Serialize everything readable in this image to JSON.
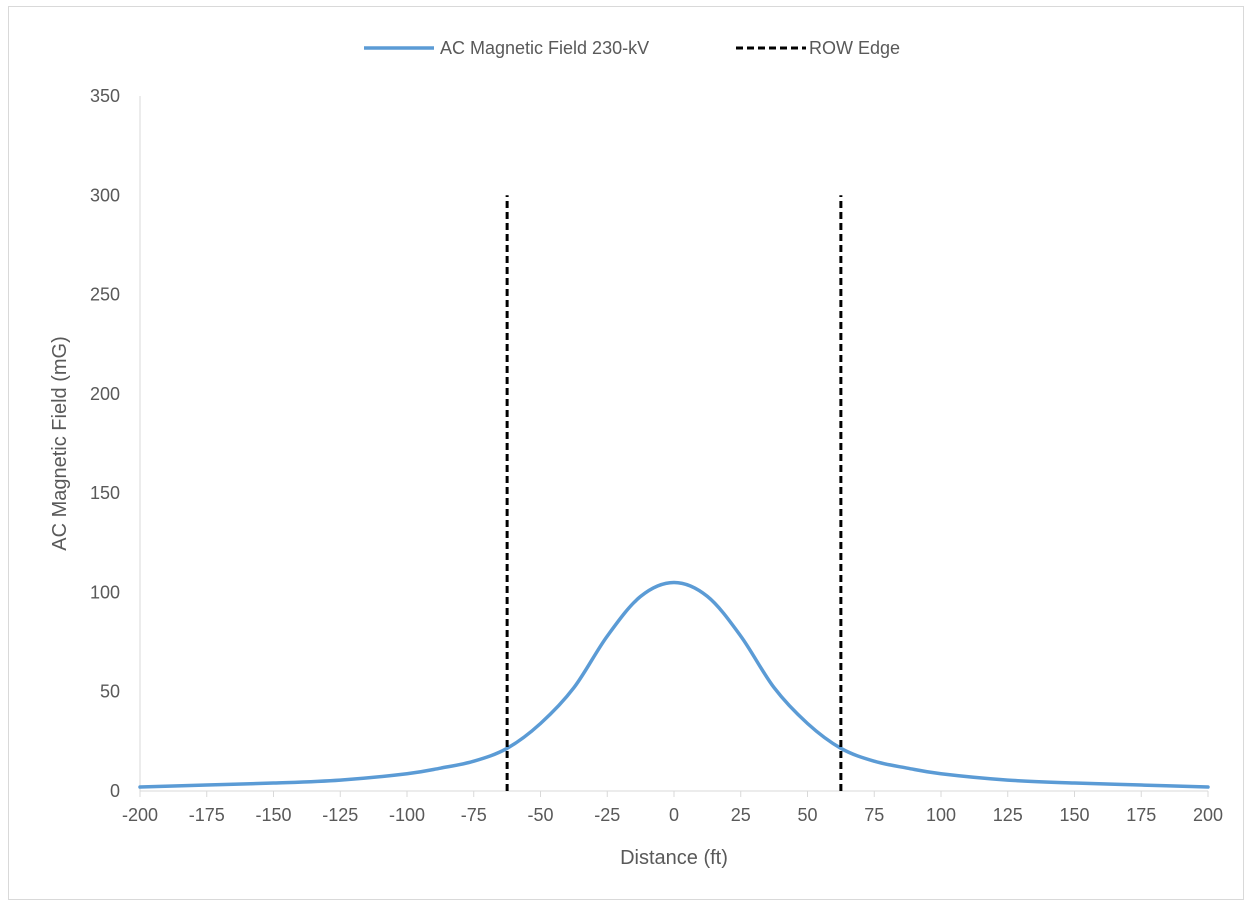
{
  "chart_data": {
    "type": "line",
    "title": "",
    "xlabel": "Distance (ft)",
    "ylabel": "AC Magnetic Field (mG)",
    "xlim": [
      -200,
      200
    ],
    "ylim": [
      0,
      350
    ],
    "x_ticks": [
      -200,
      -175,
      -150,
      -125,
      -100,
      -75,
      -50,
      -25,
      0,
      25,
      50,
      75,
      100,
      125,
      150,
      175,
      200
    ],
    "y_ticks": [
      0,
      50,
      100,
      150,
      200,
      250,
      300,
      350
    ],
    "grid": false,
    "legend_position": "top",
    "series": [
      {
        "name": "AC Magnetic Field 230-kV",
        "color": "#5b9bd5",
        "style": "solid",
        "x": [
          -200,
          -175,
          -150,
          -125,
          -100,
          -87.5,
          -75,
          -62.5,
          -50,
          -37.5,
          -25,
          -12.5,
          0,
          12.5,
          25,
          37.5,
          50,
          62.5,
          75,
          87.5,
          100,
          125,
          150,
          175,
          200
        ],
        "y": [
          2,
          3,
          4,
          5.5,
          8.7,
          11.5,
          15,
          21.5,
          34,
          52,
          78,
          98,
          105,
          98,
          78,
          52,
          34,
          21.5,
          15,
          11.5,
          8.7,
          5.5,
          4,
          3,
          2
        ]
      },
      {
        "name": "ROW Edge",
        "color": "#000000",
        "style": "dashed",
        "segments": [
          {
            "x": [
              -62.5,
              -62.5
            ],
            "y": [
              0,
              300
            ]
          },
          {
            "x": [
              62.5,
              62.5
            ],
            "y": [
              0,
              300
            ]
          }
        ]
      }
    ]
  }
}
